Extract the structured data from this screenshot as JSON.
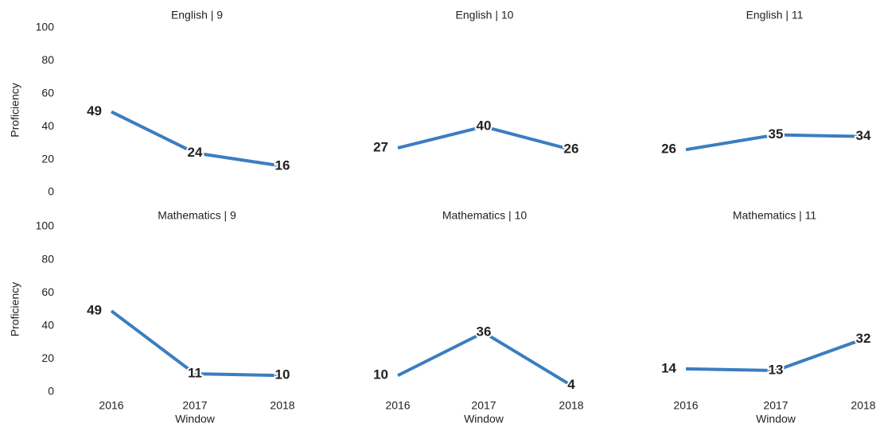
{
  "chart_data": [
    {
      "type": "line",
      "title": "English | 9",
      "ylabel": "Proficiency",
      "categories": [
        null,
        null,
        null
      ],
      "values": [
        49,
        24,
        16
      ],
      "color": "#3b7dc0",
      "ylim": [
        0,
        100
      ],
      "yticks": [
        0,
        20,
        40,
        60,
        80,
        100
      ]
    },
    {
      "type": "line",
      "title": "English | 10",
      "categories": [
        null,
        null,
        null
      ],
      "values": [
        27,
        40,
        26
      ],
      "color": "#3b7dc0",
      "ylim": [
        0,
        100
      ]
    },
    {
      "type": "line",
      "title": "English | 11",
      "categories": [
        null,
        null,
        null
      ],
      "values": [
        26,
        35,
        34
      ],
      "color": "#3b7dc0",
      "ylim": [
        0,
        100
      ]
    },
    {
      "type": "line",
      "title": "Mathematics | 9",
      "ylabel": "Proficiency",
      "xlabel": "Window",
      "categories": [
        "2016",
        "2017",
        "2018"
      ],
      "values": [
        49,
        11,
        10
      ],
      "color": "#3b7dc0",
      "ylim": [
        0,
        100
      ],
      "yticks": [
        0,
        20,
        40,
        60,
        80,
        100
      ]
    },
    {
      "type": "line",
      "title": "Mathematics | 10",
      "xlabel": "Window",
      "categories": [
        "2016",
        "2017",
        "2018"
      ],
      "values": [
        10,
        36,
        4
      ],
      "color": "#3b7dc0",
      "ylim": [
        0,
        100
      ]
    },
    {
      "type": "line",
      "title": "Mathematics | 11",
      "xlabel": "Window",
      "categories": [
        "2016",
        "2017",
        "2018"
      ],
      "values": [
        14,
        13,
        32
      ],
      "color": "#3b7dc0",
      "ylim": [
        0,
        100
      ]
    }
  ]
}
